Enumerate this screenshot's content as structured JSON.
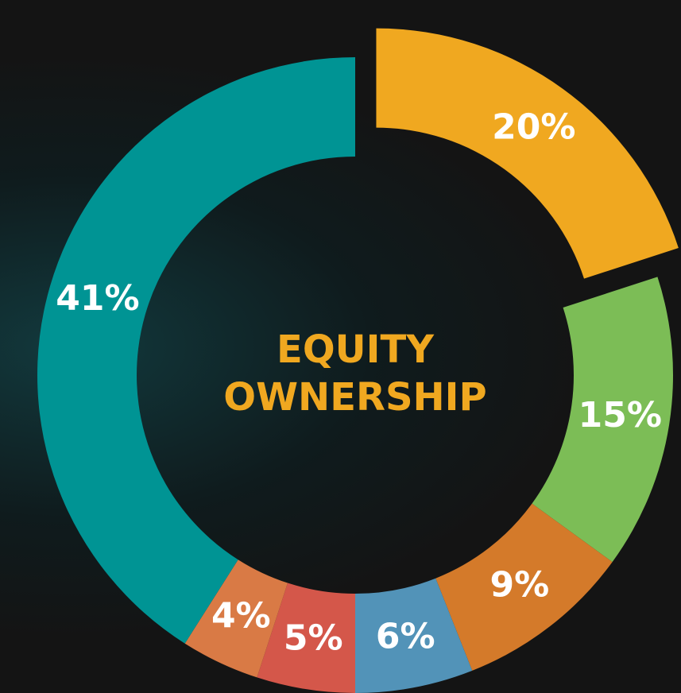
{
  "chart_data": {
    "type": "donut",
    "title": "EQUITY OWNERSHIP",
    "values": [
      20,
      15,
      9,
      6,
      5,
      4,
      41
    ],
    "value_labels": [
      "20%",
      "15%",
      "9%",
      "6%",
      "5%",
      "4%",
      "41%"
    ],
    "colors": [
      "#f0a820",
      "#7cbd56",
      "#d47a2a",
      "#5293b8",
      "#d4574a",
      "#d97a45",
      "#009494"
    ],
    "exploded": [
      0
    ]
  }
}
